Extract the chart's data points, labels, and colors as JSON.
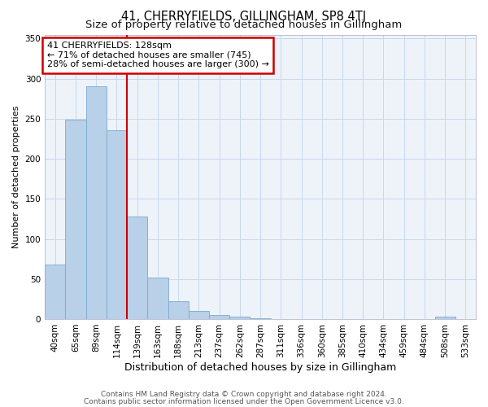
{
  "title": "41, CHERRYFIELDS, GILLINGHAM, SP8 4TJ",
  "subtitle": "Size of property relative to detached houses in Gillingham",
  "xlabel": "Distribution of detached houses by size in Gillingham",
  "ylabel": "Number of detached properties",
  "categories": [
    "40sqm",
    "65sqm",
    "89sqm",
    "114sqm",
    "139sqm",
    "163sqm",
    "188sqm",
    "213sqm",
    "237sqm",
    "262sqm",
    "287sqm",
    "311sqm",
    "336sqm",
    "360sqm",
    "385sqm",
    "410sqm",
    "434sqm",
    "459sqm",
    "484sqm",
    "508sqm",
    "533sqm"
  ],
  "values": [
    68,
    249,
    291,
    236,
    128,
    52,
    22,
    10,
    5,
    3,
    1,
    0,
    0,
    0,
    0,
    0,
    0,
    0,
    0,
    3,
    0
  ],
  "bar_color": "#b8d0e8",
  "bar_edgecolor": "#7aaad0",
  "bar_linewidth": 0.6,
  "grid_color": "#c8d8ec",
  "bg_color": "#eef3f9",
  "vline_x_index": 3,
  "vline_color": "#cc0000",
  "annotation_line1": "41 CHERRYFIELDS: 128sqm",
  "annotation_line2": "← 71% of detached houses are smaller (745)",
  "annotation_line3": "28% of semi-detached houses are larger (300) →",
  "annotation_box_facecolor": "#ffffff",
  "annotation_box_edgecolor": "#cc0000",
  "ylim": [
    0,
    355
  ],
  "yticks": [
    0,
    50,
    100,
    150,
    200,
    250,
    300,
    350
  ],
  "footer_line1": "Contains HM Land Registry data © Crown copyright and database right 2024.",
  "footer_line2": "Contains public sector information licensed under the Open Government Licence v3.0.",
  "title_fontsize": 10.5,
  "subtitle_fontsize": 9.5,
  "xlabel_fontsize": 9,
  "ylabel_fontsize": 8,
  "tick_fontsize": 7.5,
  "annotation_fontsize": 8,
  "footer_fontsize": 6.5
}
